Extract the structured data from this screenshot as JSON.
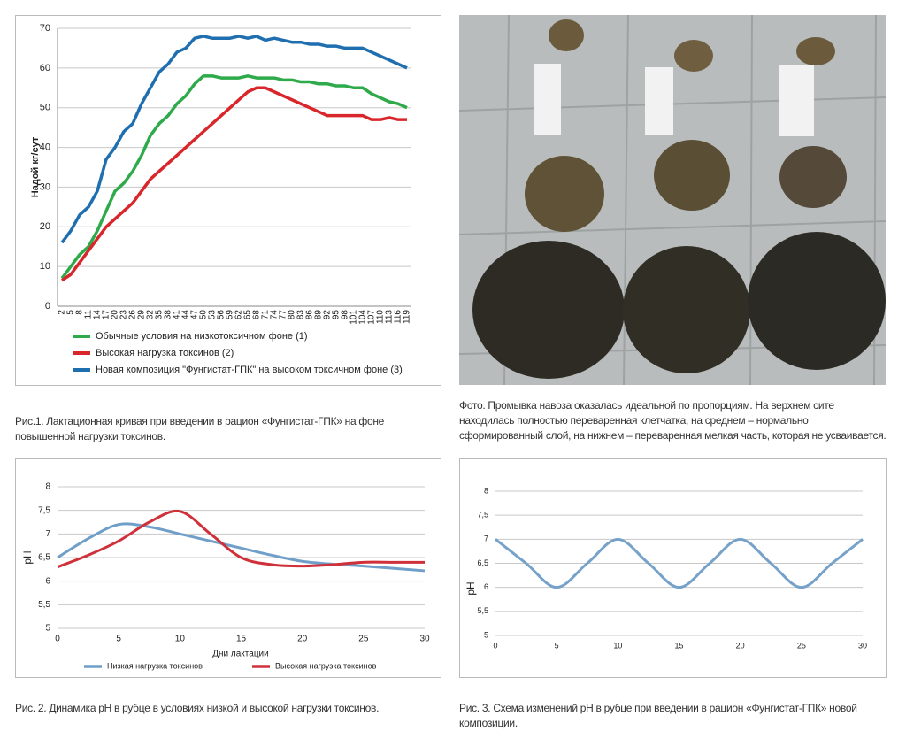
{
  "chart_data": [
    {
      "type": "line",
      "ylabel": "Надой кг/сут",
      "categories": [
        "2",
        "5",
        "8",
        "11",
        "14",
        "17",
        "20",
        "23",
        "26",
        "29",
        "32",
        "35",
        "38",
        "41",
        "44",
        "47",
        "50",
        "53",
        "56",
        "59",
        "62",
        "65",
        "68",
        "71",
        "74",
        "77",
        "80",
        "83",
        "86",
        "89",
        "92",
        "95",
        "98",
        "101",
        "104",
        "107",
        "110",
        "113",
        "116",
        "119"
      ],
      "series": [
        {
          "name": "Обычные условия на низкотоксичном фоне (1)",
          "color": "#2eaa4a",
          "values": [
            7,
            10,
            13,
            15,
            19,
            24,
            29,
            31,
            34,
            38,
            43,
            46,
            48,
            51,
            53,
            56,
            58,
            58,
            57.5,
            57.5,
            57.5,
            58,
            57.5,
            57.5,
            57.5,
            57,
            57,
            56.5,
            56.5,
            56,
            56,
            55.5,
            55.5,
            55,
            55,
            53.5,
            52.5,
            51.5,
            51,
            50
          ]
        },
        {
          "name": "Высокая нагрузка токсинов  (2)",
          "color": "#d9262b",
          "values": [
            6.5,
            8,
            11,
            14,
            17,
            20,
            22,
            24,
            26,
            29,
            32,
            34,
            36,
            38,
            40,
            42,
            44,
            46,
            48,
            50,
            52,
            54,
            55,
            55,
            54,
            53,
            52,
            51,
            50,
            49,
            48,
            48,
            48,
            48,
            48,
            47,
            47,
            47.5,
            47,
            47
          ]
        },
        {
          "name": "Новая композиция \"Фунгистат-ГПК\" на высоком токсичном фоне (3)",
          "color": "#1f6fb0",
          "values": [
            16,
            19,
            23,
            25,
            29,
            37,
            40,
            44,
            46,
            51,
            55,
            59,
            61,
            64,
            65,
            67.5,
            68,
            67.5,
            67.5,
            67.5,
            68,
            67.5,
            68,
            67,
            67.5,
            67,
            66.5,
            66.5,
            66,
            66,
            65.5,
            65.5,
            65,
            65,
            65,
            64,
            63,
            62,
            61,
            60
          ]
        }
      ],
      "ylim": [
        0,
        70
      ],
      "yticks": [
        0,
        10,
        20,
        30,
        40,
        50,
        60,
        70
      ],
      "grid": true,
      "legend": "bottom",
      "caption": "Рис.1. Лактационная кривая при введении в рацион «Фунгистат-ГПК» на фоне повышенной нагрузки токсинов."
    },
    {
      "type": "line",
      "smooth": true,
      "xlabel": "Дни лактации",
      "ylabel": "pH",
      "x": [
        0,
        2.5,
        5,
        7.5,
        10,
        12.5,
        15,
        17.5,
        20,
        22.5,
        25,
        27.5,
        30
      ],
      "series": [
        {
          "name": "Низкая нагрузка токсинов",
          "color": "#6f9fc8",
          "values": [
            6.5,
            6.9,
            7.2,
            7.15,
            7.0,
            6.85,
            6.7,
            6.55,
            6.42,
            6.36,
            6.32,
            6.27,
            6.22
          ]
        },
        {
          "name": "Высокая нагрузка токсинов",
          "color": "#d0303a",
          "values": [
            6.3,
            6.55,
            6.85,
            7.25,
            7.48,
            7.0,
            6.5,
            6.35,
            6.32,
            6.35,
            6.4,
            6.4,
            6.4
          ]
        }
      ],
      "xlim": [
        0,
        30
      ],
      "xticks": [
        0,
        5,
        10,
        15,
        20,
        25,
        30
      ],
      "ylim": [
        5,
        8
      ],
      "yticks": [
        5,
        {
          "value": 5.5,
          "label": "5,5"
        },
        6,
        {
          "value": 6.5,
          "label": "6,5"
        },
        7,
        {
          "value": 7.5,
          "label": "7,5"
        },
        8
      ],
      "grid": true,
      "legend": "bottom",
      "caption": "Рис. 2. Динамика pH в рубце в условиях низкой и высокой нагрузки токсинов."
    },
    {
      "type": "line",
      "smooth": true,
      "ylabel": "pH",
      "x": [
        0,
        2.5,
        5,
        7.5,
        10,
        12.5,
        15,
        17.5,
        20,
        22.5,
        25,
        27.5,
        30
      ],
      "series": [
        {
          "color": "#76a2c9",
          "values": [
            7,
            6.5,
            6,
            6.5,
            7,
            6.5,
            6,
            6.5,
            7,
            6.5,
            6,
            6.5,
            7
          ]
        }
      ],
      "xlim": [
        0,
        30
      ],
      "xticks": [
        0,
        5,
        10,
        15,
        20,
        25,
        30
      ],
      "ylim": [
        5,
        8
      ],
      "yticks": [
        5,
        {
          "value": 5.5,
          "label": "5,5"
        },
        6,
        {
          "value": 6.5,
          "label": "6,5"
        },
        7,
        {
          "value": 7.5,
          "label": "7,5"
        },
        8
      ],
      "grid": true,
      "caption": "Рис. 3. Схема изменений pH в рубце при введении в рацион «Фунгистат-ГПК» новой композиции."
    }
  ],
  "photo": {
    "caption": "Фото. Промывка навоза оказалась идеальной по пропорциям. На верхнем сите находилась полностью переваренная клетчатка, на среднем – нормально сформированный слой, на нижнем – переваренная мелкая часть, которая не усваивается."
  }
}
